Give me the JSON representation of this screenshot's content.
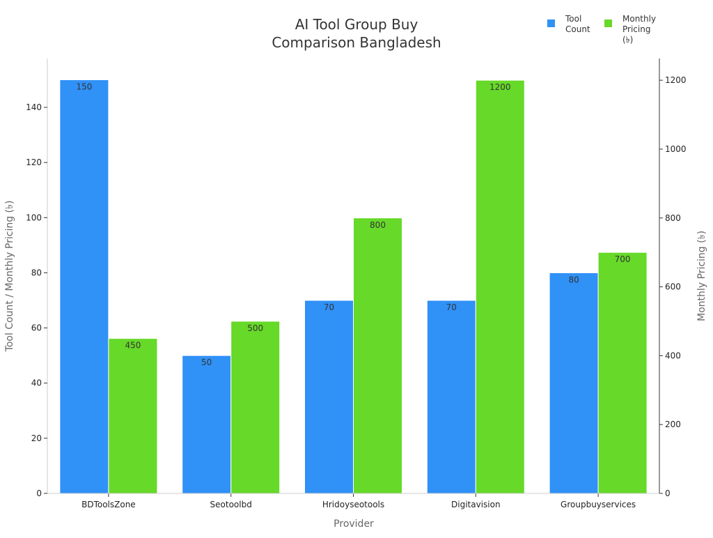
{
  "chart_data": {
    "type": "bar",
    "title": "AI Tool Group Buy\nComparison Bangladesh",
    "title_lines": [
      "AI Tool Group Buy",
      "Comparison Bangladesh"
    ],
    "xlabel": "Provider",
    "ylabel": "Tool Count / Monthly Pricing (৳)",
    "y2label": "Monthly Pricing (৳)",
    "categories": [
      "BDToolsZone",
      "Seotoolbd",
      "Hridoyseotools",
      "Digitavision",
      "Groupbuyservices"
    ],
    "series": [
      {
        "name": "Tool Count",
        "axis": "left",
        "color": "#3091f7",
        "values": [
          150,
          50,
          70,
          70,
          80
        ]
      },
      {
        "name": "Monthly Pricing (৳)",
        "axis": "right",
        "color": "#66d929",
        "values": [
          450,
          500,
          800,
          1200,
          700
        ]
      }
    ],
    "legend_lines": [
      [
        "Tool",
        "Count"
      ],
      [
        "Monthly",
        "Pricing",
        "(৳)"
      ]
    ],
    "ylim": [
      0,
      157.7
    ],
    "y2lim": [
      0,
      1263
    ],
    "yticks": [
      0,
      20,
      40,
      60,
      80,
      100,
      120,
      140
    ],
    "y2ticks": [
      0,
      200,
      400,
      600,
      800,
      1000,
      1200
    ],
    "grid": false,
    "legend_position": "top-right"
  }
}
